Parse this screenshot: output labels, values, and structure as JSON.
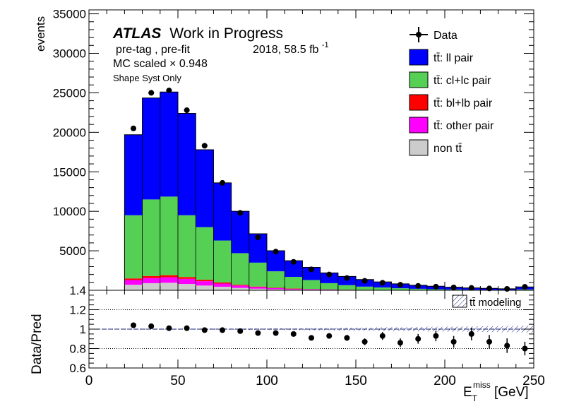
{
  "labels": {
    "atlas": "ATLAS",
    "work_in_progress": "Work in Progress",
    "selection": "pre-tag ,  pre-fit",
    "lumi": "2018, 58.5 fb",
    "lumi_exp": "-1",
    "mc_scaled": "MC scaled × 0.948",
    "syst": "Shape Syst Only"
  },
  "chart_data": [
    {
      "type": "bar",
      "stacked": true,
      "ylabel": "events",
      "ylim": [
        1.4,
        35500
      ],
      "xlim": [
        0,
        250
      ],
      "yticks": [
        "5000",
        "10000",
        "15000",
        "20000",
        "25000",
        "30000",
        "35000"
      ],
      "ytick_values": [
        5000,
        10000,
        15000,
        20000,
        25000,
        30000,
        35000
      ],
      "ymin_label": "1.4",
      "bin_edges": [
        20,
        30,
        40,
        50,
        60,
        70,
        80,
        90,
        100,
        110,
        120,
        130,
        140,
        150,
        160,
        170,
        180,
        190,
        200,
        210,
        220,
        230,
        240,
        250
      ],
      "legend_position": "top-right",
      "series": [
        {
          "name": "non tt̄",
          "color": "#cccccc",
          "values": [
            700,
            900,
            950,
            800,
            600,
            450,
            300,
            200,
            130,
            90,
            60,
            40,
            30,
            20,
            15,
            10,
            8,
            6,
            5,
            4,
            3,
            2,
            5
          ]
        },
        {
          "name": "tt̄: other pair",
          "color": "#ff00ff",
          "values": [
            600,
            650,
            700,
            650,
            550,
            400,
            300,
            200,
            140,
            100,
            70,
            50,
            35,
            25,
            18,
            12,
            9,
            6,
            5,
            4,
            3,
            2,
            3
          ]
        },
        {
          "name": "tt̄: bl+lb pair",
          "color": "#ff0000",
          "values": [
            200,
            250,
            260,
            230,
            180,
            140,
            100,
            70,
            50,
            35,
            25,
            18,
            12,
            9,
            6,
            5,
            4,
            3,
            2,
            2,
            1,
            1,
            2
          ]
        },
        {
          "name": "tt̄: cl+lc pair",
          "color": "#55d055",
          "values": [
            8000,
            9700,
            9950,
            7820,
            6670,
            5310,
            4000,
            3030,
            2080,
            1475,
            1145,
            795,
            570,
            410,
            320,
            230,
            170,
            120,
            90,
            60,
            45,
            35,
            100
          ]
        },
        {
          "name": "tt̄: ll pair",
          "color": "#0000ff",
          "values": [
            10200,
            12850,
            13240,
            12900,
            9800,
            7300,
            5300,
            3650,
            2610,
            2050,
            1610,
            1300,
            1110,
            900,
            700,
            560,
            450,
            380,
            290,
            230,
            190,
            150,
            320
          ]
        }
      ],
      "data": {
        "name": "Data",
        "x": [
          25,
          35,
          45,
          55,
          65,
          75,
          85,
          95,
          105,
          115,
          125,
          135,
          145,
          155,
          165,
          175,
          185,
          195,
          205,
          215,
          225,
          235,
          245
        ],
        "y": [
          20500,
          25000,
          25300,
          22800,
          18300,
          13600,
          9800,
          6700,
          4900,
          3600,
          2650,
          2000,
          1550,
          1200,
          950,
          700,
          560,
          460,
          360,
          300,
          230,
          180,
          440
        ]
      }
    },
    {
      "type": "scatter",
      "ylabel": "Data/Pred",
      "xlabel": "E_T^miss [GeV]",
      "xlabel_main": "E",
      "xlabel_sub": "T",
      "xlabel_sup": "miss",
      "xlabel_unit": " [GeV]",
      "xlim": [
        0,
        250
      ],
      "ylim": [
        0.6,
        1.4
      ],
      "xticks": [
        "0",
        "50",
        "100",
        "150",
        "200",
        "250"
      ],
      "xtick_values": [
        0,
        50,
        100,
        150,
        200,
        250
      ],
      "yticks": [
        "0.6",
        "0.8",
        "1",
        "1.2",
        "1.4"
      ],
      "ytick_values": [
        0.6,
        0.8,
        1.0,
        1.2,
        1.4
      ],
      "gridlines_y": [
        0.8,
        1.0,
        1.2
      ],
      "band_name": "tt̄ modeling",
      "band_halfwidth": [
        0.005,
        0.005,
        0.005,
        0.005,
        0.006,
        0.006,
        0.007,
        0.008,
        0.009,
        0.01,
        0.012,
        0.013,
        0.015,
        0.016,
        0.018,
        0.02,
        0.022,
        0.024,
        0.026,
        0.028,
        0.03,
        0.032,
        0.034
      ],
      "x": [
        25,
        35,
        45,
        55,
        65,
        75,
        85,
        95,
        105,
        115,
        125,
        135,
        145,
        155,
        165,
        175,
        185,
        195,
        205,
        215,
        225,
        235,
        245
      ],
      "y": [
        1.04,
        1.03,
        1.01,
        1.01,
        0.99,
        0.99,
        0.98,
        0.96,
        0.96,
        0.95,
        0.91,
        0.93,
        0.91,
        0.87,
        0.93,
        0.86,
        0.9,
        0.93,
        0.87,
        0.95,
        0.87,
        0.83,
        0.8
      ],
      "yerr": [
        0.008,
        0.008,
        0.008,
        0.008,
        0.009,
        0.01,
        0.012,
        0.014,
        0.017,
        0.02,
        0.023,
        0.027,
        0.03,
        0.035,
        0.04,
        0.045,
        0.05,
        0.055,
        0.06,
        0.065,
        0.07,
        0.075,
        0.07
      ]
    }
  ]
}
